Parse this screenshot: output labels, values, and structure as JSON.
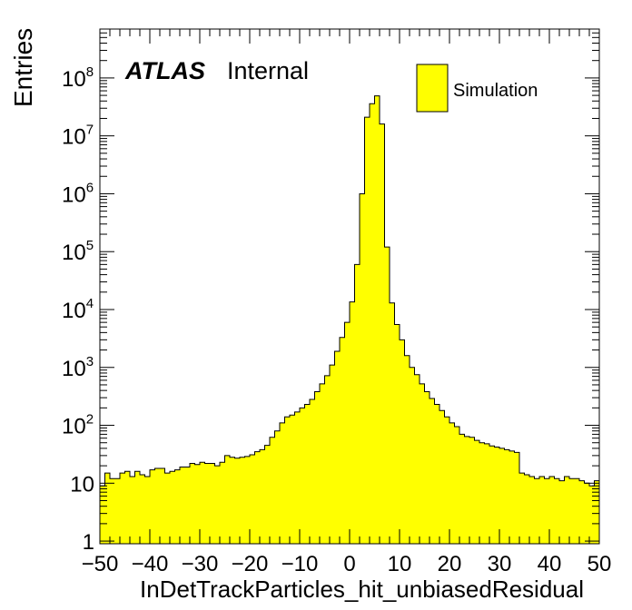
{
  "chart_data": {
    "type": "bar",
    "histogram": true,
    "xlabel": "InDetTrackParticles_hit_unbiasedResidual",
    "ylabel": "Entries",
    "xlim": [
      -50,
      50
    ],
    "ylim": [
      0.9,
      700000000
    ],
    "yscale": "log",
    "x_ticks": [
      -50,
      -40,
      -30,
      -20,
      -10,
      0,
      10,
      20,
      30,
      40,
      50
    ],
    "y_ticks": [
      {
        "value": 1,
        "base": "1",
        "exp": ""
      },
      {
        "value": 10,
        "base": "10",
        "exp": ""
      },
      {
        "value": 100,
        "base": "10",
        "exp": "2"
      },
      {
        "value": 1000,
        "base": "10",
        "exp": "3"
      },
      {
        "value": 10000,
        "base": "10",
        "exp": "4"
      },
      {
        "value": 100000,
        "base": "10",
        "exp": "5"
      },
      {
        "value": 1000000,
        "base": "10",
        "exp": "6"
      },
      {
        "value": 10000000,
        "base": "10",
        "exp": "7"
      },
      {
        "value": 100000000,
        "base": "10",
        "exp": "8"
      }
    ],
    "bin_edges_start": -50,
    "bin_width": 1,
    "values": [
      9,
      15,
      12,
      12,
      15,
      16,
      13,
      16,
      14,
      13,
      17,
      18,
      18,
      15,
      16,
      17,
      19,
      19,
      22,
      21,
      23,
      22,
      22,
      20,
      23,
      30,
      28,
      27,
      28,
      29,
      31,
      35,
      38,
      45,
      62,
      80,
      110,
      140,
      150,
      170,
      200,
      230,
      280,
      380,
      520,
      720,
      1100,
      1900,
      3300,
      6000,
      13500,
      60000,
      1000000.0,
      21000000.0,
      36000000.0,
      49000000.0,
      16000000.0,
      120000.0,
      13000,
      5500,
      3000,
      1600,
      1000,
      750,
      520,
      380,
      290,
      230,
      180,
      140,
      110,
      95,
      70,
      64,
      62,
      55,
      50,
      48,
      44,
      42,
      40,
      38,
      36,
      34,
      15,
      14,
      13,
      12,
      13,
      12,
      13,
      12,
      11,
      13,
      12,
      12,
      11,
      10,
      9,
      11
    ],
    "series": [
      {
        "name": "Simulation"
      }
    ],
    "legend": {
      "position": "top-right",
      "label": "Simulation"
    },
    "label": {
      "experiment": "ATLAS",
      "status": "Internal"
    },
    "fill_color": "#ffff00",
    "line_color": "#000000"
  }
}
